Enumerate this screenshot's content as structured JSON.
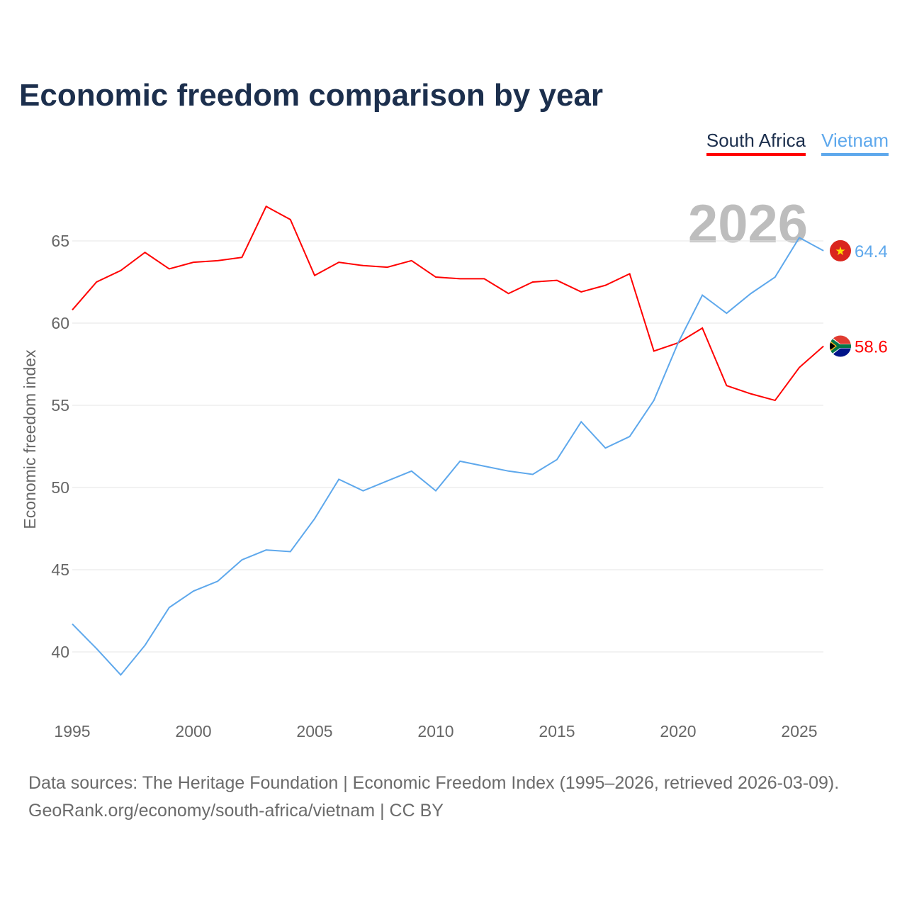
{
  "chart_data": {
    "type": "line",
    "title": "Economic freedom comparison by year",
    "xlabel": "",
    "ylabel": "Economic freedom index",
    "xlim": [
      1995,
      2026
    ],
    "ylim": [
      36.5,
      68
    ],
    "x_ticks": [
      1995,
      2000,
      2005,
      2010,
      2015,
      2020,
      2025
    ],
    "y_ticks": [
      40,
      45,
      50,
      55,
      60,
      65
    ],
    "grid": true,
    "legend_position": "top-right",
    "year_watermark": "2026",
    "x": [
      1995,
      1996,
      1997,
      1998,
      1999,
      2000,
      2001,
      2002,
      2003,
      2004,
      2005,
      2006,
      2007,
      2008,
      2009,
      2010,
      2011,
      2012,
      2013,
      2014,
      2015,
      2016,
      2017,
      2018,
      2019,
      2020,
      2021,
      2022,
      2023,
      2024,
      2025,
      2026
    ],
    "series": [
      {
        "name": "South Africa",
        "color": "#ff0000",
        "end_label": "58.6",
        "flag": "south-africa-flag",
        "values": [
          60.8,
          62.5,
          63.2,
          64.3,
          63.3,
          63.7,
          63.8,
          64.0,
          67.1,
          66.3,
          62.9,
          63.7,
          63.5,
          63.4,
          63.8,
          62.8,
          62.7,
          62.7,
          61.8,
          62.5,
          62.6,
          61.9,
          62.3,
          63.0,
          58.3,
          58.8,
          59.7,
          56.2,
          55.7,
          55.3,
          57.3,
          58.6
        ]
      },
      {
        "name": "Vietnam",
        "color": "#5ea8ec",
        "end_label": "64.4",
        "flag": "vietnam-flag",
        "values": [
          41.7,
          40.2,
          38.6,
          40.4,
          42.7,
          43.7,
          44.3,
          45.6,
          46.2,
          46.1,
          48.1,
          50.5,
          49.8,
          50.4,
          51.0,
          49.8,
          51.6,
          51.3,
          51.0,
          50.8,
          51.7,
          54.0,
          52.4,
          53.1,
          55.3,
          58.8,
          61.7,
          60.6,
          61.8,
          62.8,
          65.2,
          64.4
        ]
      }
    ]
  },
  "footer": {
    "line1": "Data sources: The Heritage Foundation | Economic Freedom Index (1995–2026, retrieved 2026-03-09).",
    "line2": "GeoRank.org/economy/south-africa/vietnam | CC BY"
  }
}
